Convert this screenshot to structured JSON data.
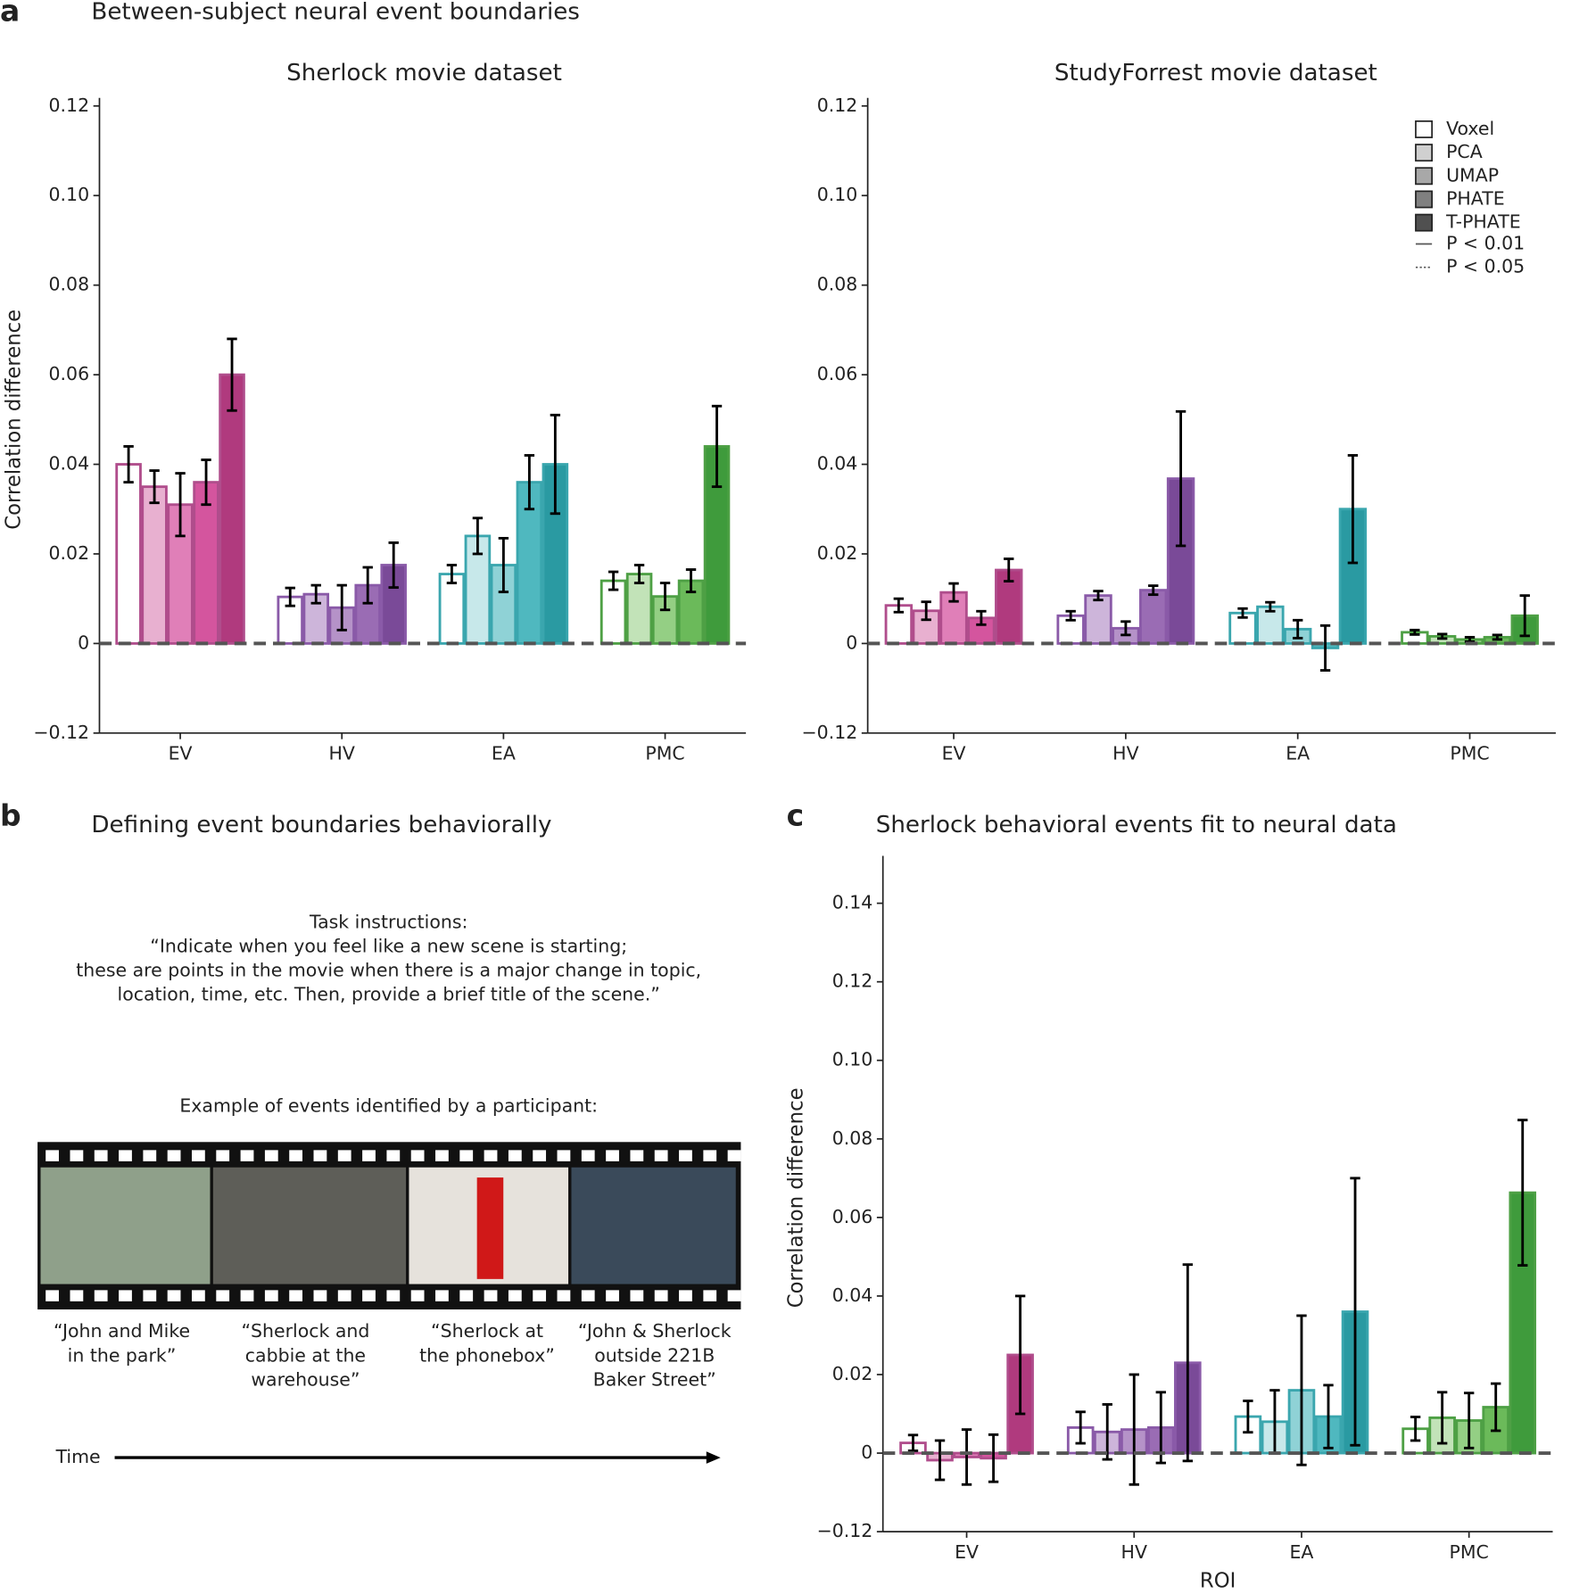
{
  "panel_labels": [
    "a",
    "b",
    "c"
  ],
  "panel_a_title": "Between-subject neural event boundaries",
  "panel_b": {
    "title": "Defining event boundaries behaviorally",
    "instructions": [
      "Task instructions:",
      "“Indicate when you feel like a new scene is starting;",
      "these are points in the movie when there is a major change in topic,",
      "location, time, etc. Then, provide a brief title of the scene.”"
    ],
    "example_label": "Example of events identified by a participant:",
    "captions": [
      [
        "“John and Mike",
        "in the park”"
      ],
      [
        "“Sherlock and",
        "cabbie at the",
        "warehouse”"
      ],
      [
        "“Sherlock at",
        "the phonebox”"
      ],
      [
        "“John & Sherlock",
        "outside 221B",
        "Baker Street”"
      ]
    ],
    "time_label": "Time"
  },
  "chart_data": [
    {
      "type": "bar",
      "title": "Sherlock movie dataset",
      "ylabel": "Correlation difference",
      "categories": [
        "EV",
        "HV",
        "EA",
        "PMC"
      ],
      "outline_colors": [
        "#b04d8c",
        "#8a5aa8",
        "#3aa6ae",
        "#4ea045"
      ],
      "ylim": [
        -0.02,
        0.12
      ],
      "axis_break": true,
      "yticks": [
        {
          "value": -0.12,
          "label": "−0.12"
        },
        0,
        0.02,
        0.04,
        0.06,
        0.08,
        {
          "value": 0.1,
          "label": "0.10"
        },
        0.12
      ],
      "series": [
        {
          "name": "Voxel",
          "color": "#ffffff",
          "colors": [
            "#ffffff",
            "#ffffff",
            "#ffffff",
            "#ffffff"
          ],
          "values": [
            0.04,
            0.0104,
            0.0155,
            0.014
          ],
          "errors": [
            0.004,
            0.002,
            0.002,
            0.002
          ]
        },
        {
          "name": "PCA",
          "color": "#d0d0d0",
          "colors": [
            "#e8b0d0",
            "#cdb5da",
            "#c7e8ea",
            "#c2e3b8"
          ],
          "values": [
            0.035,
            0.011,
            0.024,
            0.0155
          ],
          "errors": [
            0.0036,
            0.002,
            0.004,
            0.002
          ]
        },
        {
          "name": "UMAP",
          "color": "#a8a8a8",
          "colors": [
            "#e07fb8",
            "#b592c8",
            "#8fd2d6",
            "#94cf84"
          ],
          "values": [
            0.031,
            0.008,
            0.0175,
            0.0105
          ],
          "errors": [
            0.007,
            0.005,
            0.006,
            0.003
          ]
        },
        {
          "name": "PHATE",
          "color": "#808080",
          "colors": [
            "#d4559e",
            "#9a6cb4",
            "#4fb8bf",
            "#6bba5a"
          ],
          "values": [
            0.036,
            0.013,
            0.036,
            0.014
          ],
          "errors": [
            0.005,
            0.004,
            0.006,
            0.0025
          ]
        },
        {
          "name": "T-PHATE",
          "color": "#505050",
          "colors": [
            "#b03a7e",
            "#7a4a98",
            "#2a9aa2",
            "#3f9b3c"
          ],
          "values": [
            0.06,
            0.0175,
            0.04,
            0.044
          ],
          "errors": [
            0.008,
            0.005,
            0.011,
            0.009
          ]
        }
      ]
    },
    {
      "type": "bar",
      "title": "StudyForrest movie dataset",
      "categories": [
        "EV",
        "HV",
        "EA",
        "PMC"
      ],
      "outline_colors": [
        "#b04d8c",
        "#8a5aa8",
        "#3aa6ae",
        "#4ea045"
      ],
      "ylim": [
        -0.02,
        0.12
      ],
      "axis_break": true,
      "yticks": [
        {
          "value": -0.12,
          "label": "−0.12"
        },
        0,
        0.02,
        0.04,
        0.06,
        0.08,
        {
          "value": 0.1,
          "label": "0.10"
        },
        0.12
      ],
      "legend": "upper right",
      "significance_legend": [
        {
          "label": "P < 0.01",
          "style": "solid"
        },
        {
          "label": "P < 0.05",
          "style": "dotted"
        }
      ],
      "series": [
        {
          "name": "Voxel",
          "color": "#ffffff",
          "colors": [
            "#ffffff",
            "#ffffff",
            "#ffffff",
            "#ffffff"
          ],
          "values": [
            0.0085,
            0.0062,
            0.0068,
            0.0025
          ],
          "errors": [
            0.0015,
            0.001,
            0.001,
            0.0005
          ]
        },
        {
          "name": "PCA",
          "color": "#d0d0d0",
          "colors": [
            "#e8b0d0",
            "#cdb5da",
            "#c7e8ea",
            "#c2e3b8"
          ],
          "values": [
            0.0073,
            0.0107,
            0.0082,
            0.0016
          ],
          "errors": [
            0.002,
            0.001,
            0.001,
            0.0005
          ]
        },
        {
          "name": "UMAP",
          "color": "#a8a8a8",
          "colors": [
            "#e07fb8",
            "#b592c8",
            "#8fd2d6",
            "#94cf84"
          ],
          "values": [
            0.0114,
            0.0034,
            0.0032,
            0.0009
          ],
          "errors": [
            0.002,
            0.0015,
            0.002,
            0.0005
          ]
        },
        {
          "name": "PHATE",
          "color": "#808080",
          "colors": [
            "#d4559e",
            "#9a6cb4",
            "#4fb8bf",
            "#6bba5a"
          ],
          "values": [
            0.0057,
            0.0119,
            -0.001,
            0.0014
          ],
          "errors": [
            0.0015,
            0.001,
            0.005,
            0.0005
          ]
        },
        {
          "name": "T-PHATE",
          "color": "#505050",
          "colors": [
            "#b03a7e",
            "#7a4a98",
            "#2a9aa2",
            "#3f9b3c"
          ],
          "values": [
            0.0164,
            0.0368,
            0.03,
            0.0062
          ],
          "errors": [
            0.0025,
            0.015,
            0.012,
            0.0045
          ]
        }
      ]
    },
    {
      "type": "bar",
      "title": "Sherlock behavioral events fit to neural data",
      "ylabel": "Correlation difference",
      "xlabel": "ROI",
      "categories": [
        "EV",
        "HV",
        "EA",
        "PMC"
      ],
      "outline_colors": [
        "#b04d8c",
        "#8a5aa8",
        "#3aa6ae",
        "#4ea045"
      ],
      "ylim": [
        -0.02,
        0.15
      ],
      "axis_break": true,
      "yticks": [
        {
          "value": -0.12,
          "label": "−0.12"
        },
        0,
        0.02,
        0.04,
        0.06,
        0.08,
        {
          "value": 0.1,
          "label": "0.10"
        },
        0.12,
        0.14
      ],
      "series": [
        {
          "name": "Voxel",
          "color": "#ffffff",
          "colors": [
            "#ffffff",
            "#ffffff",
            "#ffffff",
            "#ffffff"
          ],
          "values": [
            0.0026,
            0.0065,
            0.0093,
            0.0062
          ],
          "errors": [
            0.002,
            0.004,
            0.004,
            0.003
          ]
        },
        {
          "name": "PCA",
          "color": "#d0d0d0",
          "colors": [
            "#e8b0d0",
            "#cdb5da",
            "#c7e8ea",
            "#c2e3b8"
          ],
          "values": [
            -0.0018,
            0.0054,
            0.008,
            0.009
          ],
          "errors": [
            0.005,
            0.007,
            0.008,
            0.0065
          ]
        },
        {
          "name": "UMAP",
          "color": "#a8a8a8",
          "colors": [
            "#e07fb8",
            "#b592c8",
            "#8fd2d6",
            "#94cf84"
          ],
          "values": [
            -0.001,
            0.006,
            0.016,
            0.0083
          ],
          "errors": [
            0.007,
            0.014,
            0.019,
            0.007
          ]
        },
        {
          "name": "PHATE",
          "color": "#808080",
          "colors": [
            "#d4559e",
            "#9a6cb4",
            "#4fb8bf",
            "#6bba5a"
          ],
          "values": [
            -0.0013,
            0.0065,
            0.0093,
            0.0117
          ],
          "errors": [
            0.006,
            0.009,
            0.008,
            0.006
          ]
        },
        {
          "name": "T-PHATE",
          "color": "#505050",
          "colors": [
            "#b03a7e",
            "#7a4a98",
            "#2a9aa2",
            "#3f9b3c"
          ],
          "values": [
            0.025,
            0.023,
            0.036,
            0.0663
          ],
          "errors": [
            0.015,
            0.025,
            0.034,
            0.0185
          ]
        }
      ]
    }
  ]
}
